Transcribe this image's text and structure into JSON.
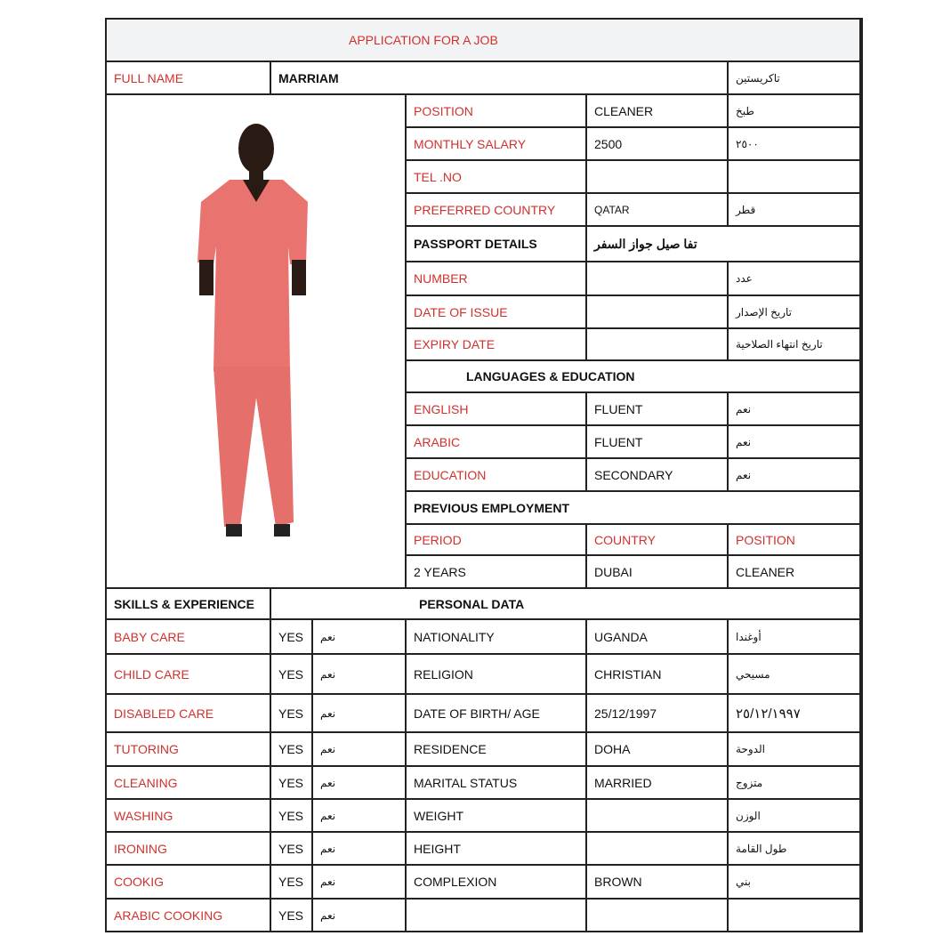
{
  "title": "APPLICATION FOR A JOB",
  "full_name": {
    "label": "FULL NAME",
    "value": "MARRIAM",
    "arabic": "تاكريستين"
  },
  "details": [
    {
      "label": "POSITION",
      "value": "CLEANER",
      "arabic": "طبخ"
    },
    {
      "label": "MONTHLY SALARY",
      "value": "2500",
      "arabic": "٢٥٠٠"
    },
    {
      "label": "TEL .NO",
      "value": "",
      "arabic": ""
    },
    {
      "label": "PREFERRED COUNTRY",
      "value": "QATAR",
      "arabic": "قطر"
    }
  ],
  "passport": {
    "heading": "PASSPORT DETAILS",
    "heading_arabic": "تفا      صيل جواز السفر",
    "rows": [
      {
        "label": "NUMBER",
        "value": "",
        "arabic": "عدد"
      },
      {
        "label": "DATE OF ISSUE",
        "value": "",
        "arabic": "تاريخ الإصدار"
      },
      {
        "label": "EXPIRY DATE",
        "value": "",
        "arabic": "تاريخ انتهاء الصلاحية"
      }
    ]
  },
  "languages": {
    "heading": "LANGUAGES & EDUCATION",
    "rows": [
      {
        "label": "ENGLISH",
        "value": "FLUENT",
        "arabic": "نعم"
      },
      {
        "label": "ARABIC",
        "value": "FLUENT",
        "arabic": "نعم"
      },
      {
        "label": "EDUCATION",
        "value": "SECONDARY",
        "arabic": "نعم"
      }
    ]
  },
  "employment": {
    "heading": "PREVIOUS EMPLOYMENT",
    "columns": [
      "PERIOD",
      "COUNTRY",
      "POSITION"
    ],
    "row": [
      "2 YEARS",
      "DUBAI",
      "CLEANER"
    ]
  },
  "skills_heading": "SKILLS & EXPERIENCE",
  "personal_heading": "PERSONAL DATA",
  "rows": [
    {
      "skill": "BABY CARE",
      "yes": "YES",
      "yes_ar": "نعم",
      "label": "NATIONALITY",
      "value": "UGANDA",
      "arabic": "أوغندا"
    },
    {
      "skill": "CHILD CARE",
      "yes": "YES",
      "yes_ar": "نعم",
      "label": "RELIGION",
      "value": "CHRISTIAN",
      "arabic": "مسيحي"
    },
    {
      "skill": "DISABLED CARE",
      "yes": "YES",
      "yes_ar": "نعم",
      "label": "DATE OF BIRTH/ AGE",
      "value": "25/12/1997",
      "arabic": "٢٥/١٢/١٩٩٧"
    },
    {
      "skill": "TUTORING",
      "yes": "YES",
      "yes_ar": "نعم",
      "label": "RESIDENCE",
      "value": "DOHA",
      "arabic": "الدوحة"
    },
    {
      "skill": "CLEANING",
      "yes": "YES",
      "yes_ar": "نعم",
      "label": "MARITAL STATUS",
      "value": "MARRIED",
      "arabic": "متزوج"
    },
    {
      "skill": "WASHING",
      "yes": "YES",
      "yes_ar": "نعم",
      "label": "WEIGHT",
      "value": "",
      "arabic": "الوزن"
    },
    {
      "skill": "IRONING",
      "yes": "YES",
      "yes_ar": "نعم",
      "label": "HEIGHT",
      "value": "",
      "arabic": "طول القامة"
    },
    {
      "skill": "COOKIG",
      "yes": "YES",
      "yes_ar": "نعم",
      "label": "COMPLEXION",
      "value": "BROWN",
      "arabic": "بني"
    },
    {
      "skill": "ARABIC COOKING",
      "yes": "YES",
      "yes_ar": "نعم",
      "label": "",
      "value": "",
      "arabic": ""
    }
  ],
  "colors": {
    "label_red": "#d0312d",
    "title_bg": "#f1f3f4",
    "scrubs": "#e8736f"
  }
}
